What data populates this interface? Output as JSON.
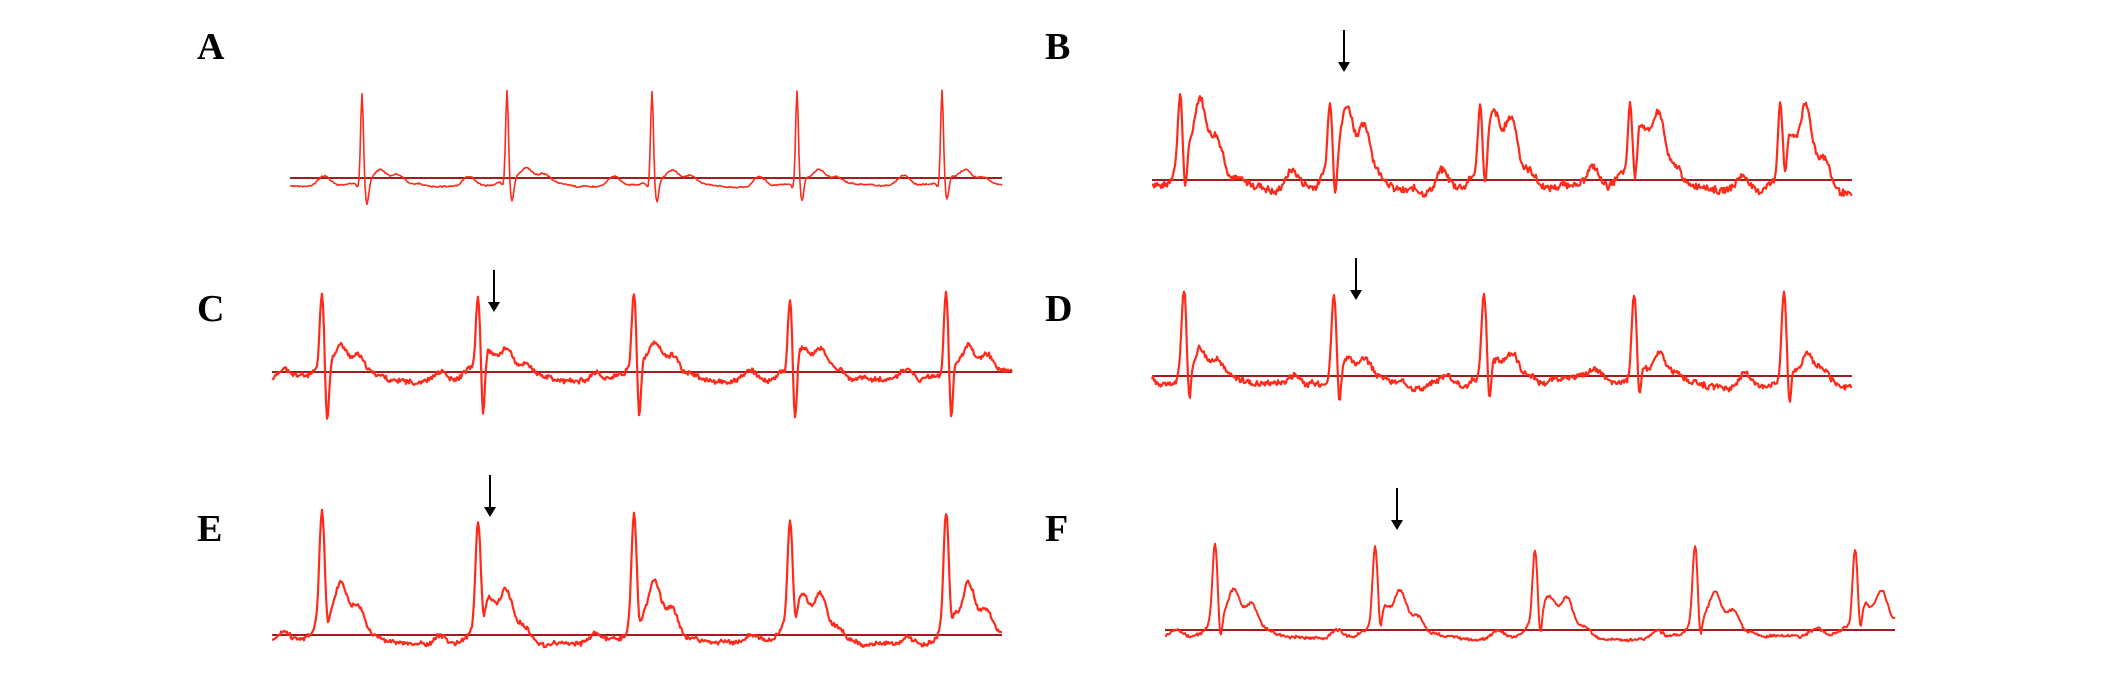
{
  "figure": {
    "trace_color": "#ff2a1a",
    "baseline_color": "#a01e1e",
    "arrow_color": "#000000",
    "panels": [
      {
        "label": "A",
        "beats": 5,
        "arrow_beat": null
      },
      {
        "label": "B",
        "beats": 5,
        "arrow_beat": 1
      },
      {
        "label": "C",
        "beats": 5,
        "arrow_beat": 1
      },
      {
        "label": "D",
        "beats": 5,
        "arrow_beat": 1
      },
      {
        "label": "E",
        "beats": 5,
        "arrow_beat": 1
      },
      {
        "label": "F",
        "beats": 5,
        "arrow_beat": 1
      }
    ]
  }
}
